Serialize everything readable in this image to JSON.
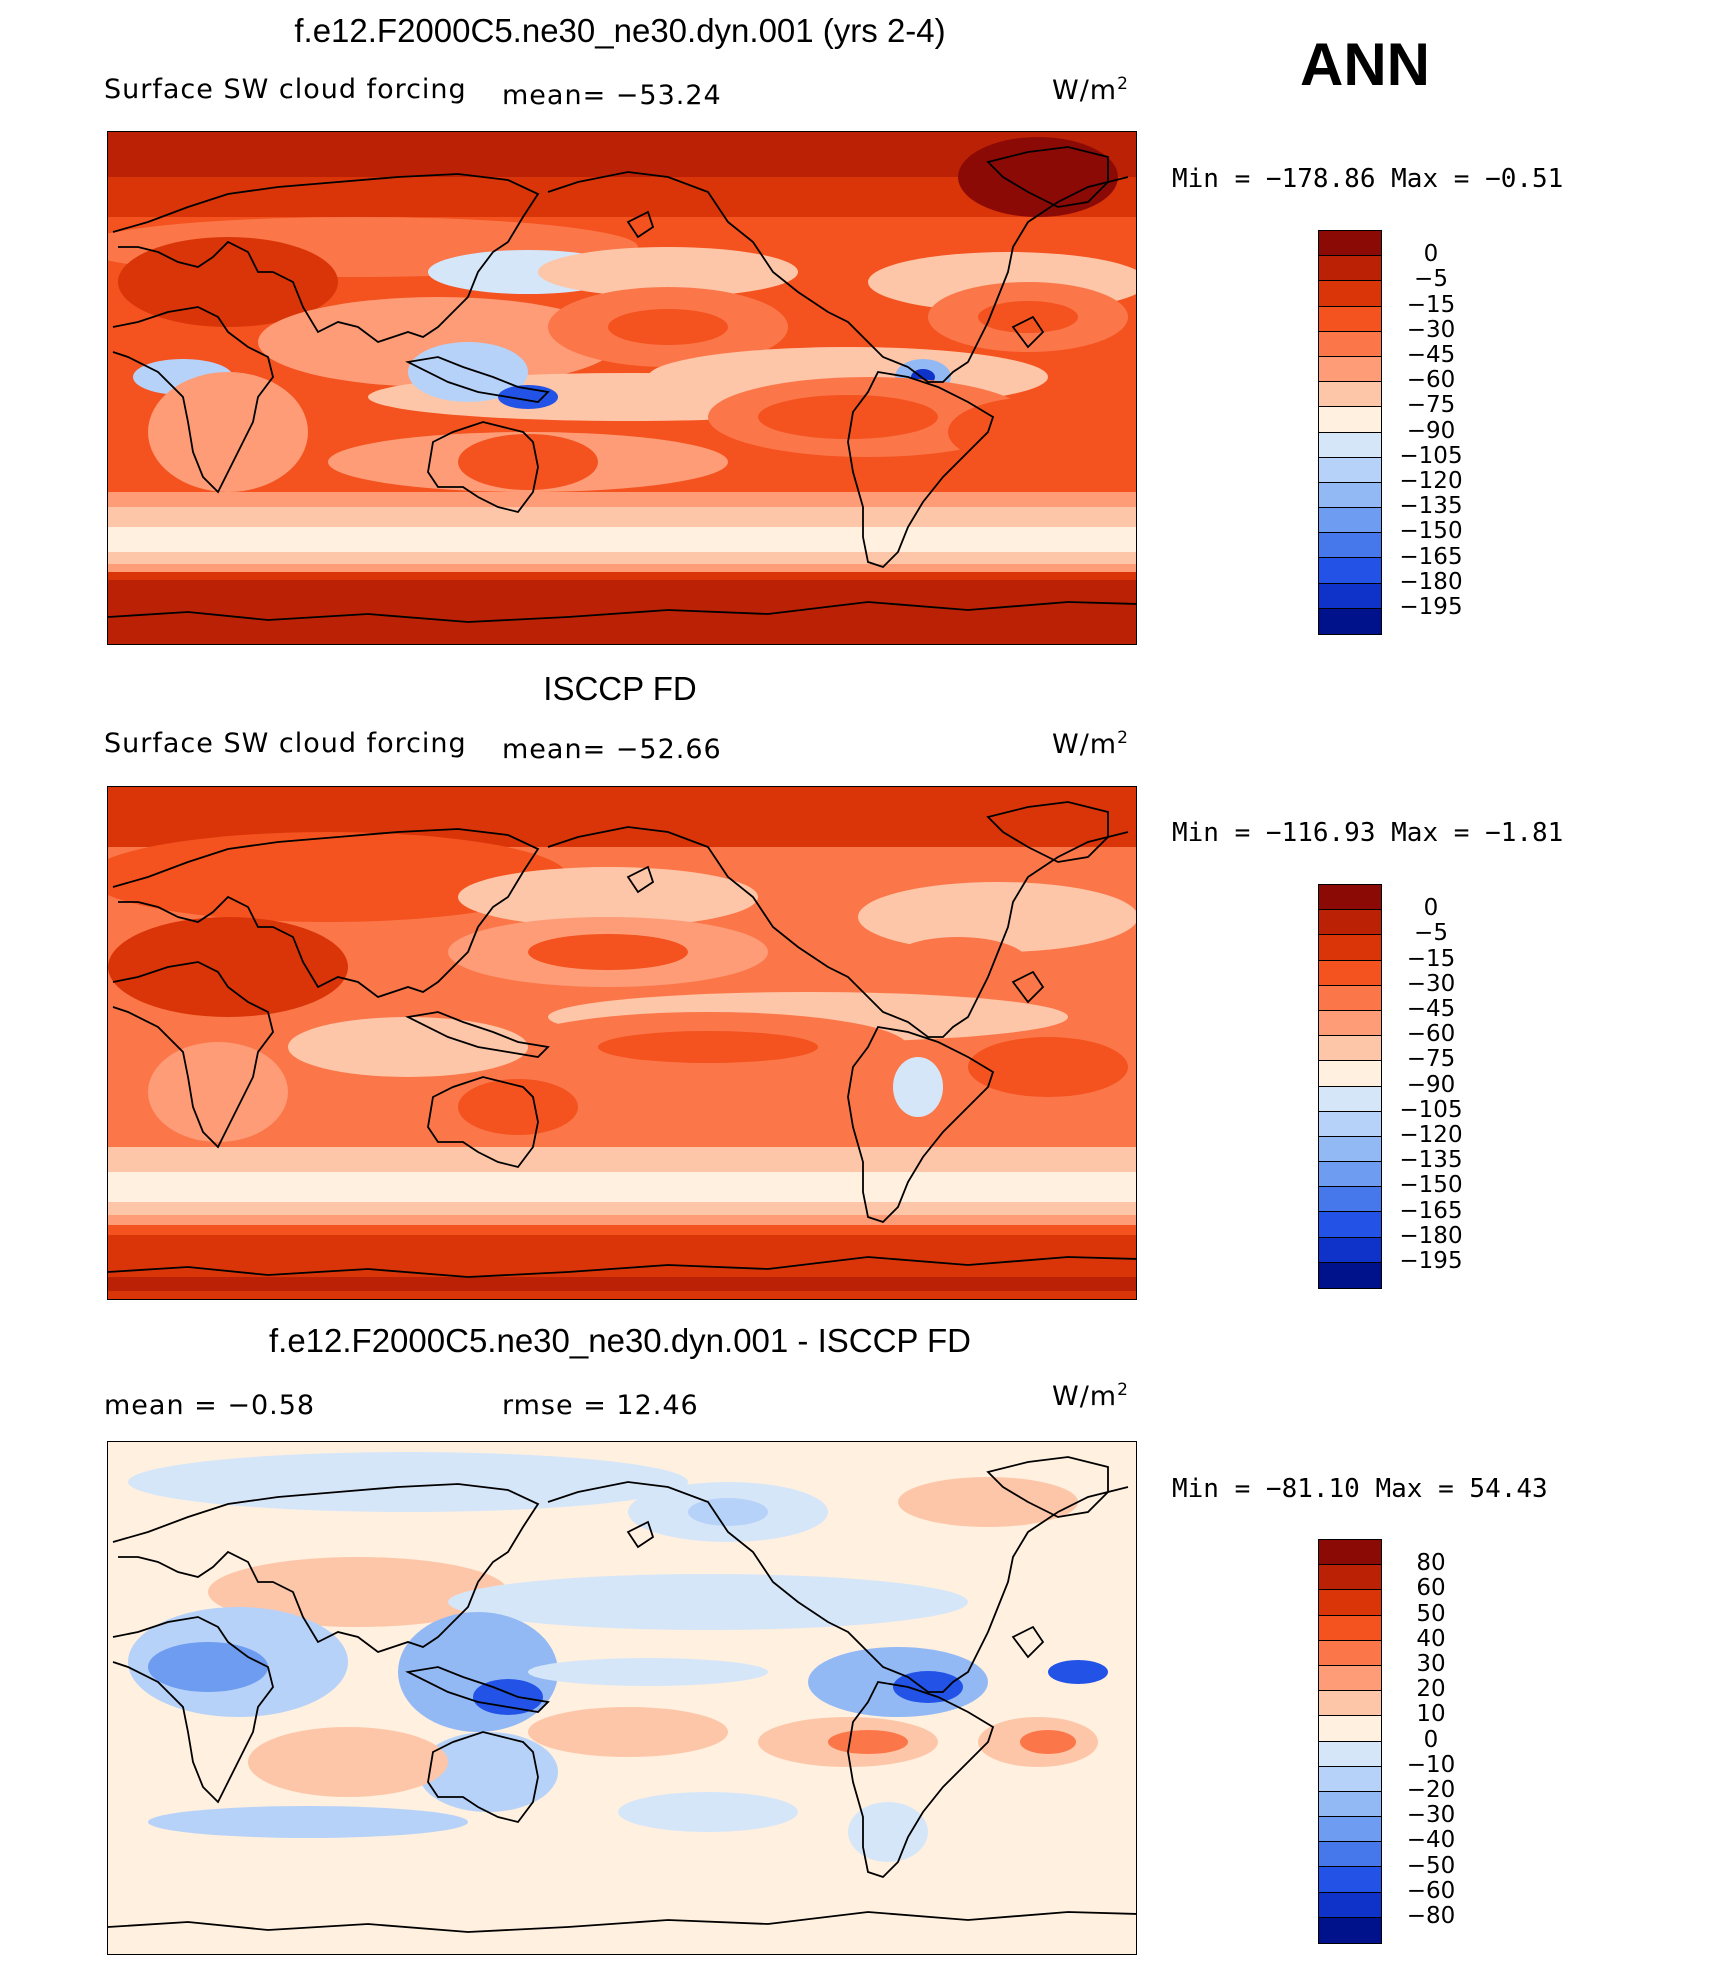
{
  "season": "ANN",
  "panels": [
    {
      "id": "model",
      "title": "f.e12.F2000C5.ne30_ne30.dyn.001 (yrs 2-4)",
      "variable": "Surface SW cloud forcing",
      "stat1": "mean= −53.24",
      "stat2": "",
      "units": "W/m",
      "units_sup": "2",
      "minmax": "Min  =  −178.86  Max  =    −0.51",
      "map_icon": "world-map-outline",
      "colorbar": {
        "labels": [
          "0",
          "−5",
          "−15",
          "−30",
          "−45",
          "−60",
          "−75",
          "−90",
          "−105",
          "−120",
          "−135",
          "−150",
          "−165",
          "−180",
          "−195"
        ],
        "colors": [
          "#8b0a05",
          "#bb2105",
          "#da3508",
          "#f4521e",
          "#fb7749",
          "#fd9c77",
          "#fec6a8",
          "#fff0df",
          "#d6e6f9",
          "#b7d2f8",
          "#93b9f5",
          "#6d9cf0",
          "#4678ec",
          "#2353e6",
          "#0f33c8",
          "#00128b"
        ]
      }
    },
    {
      "id": "obs",
      "title": "ISCCP FD",
      "variable": "Surface SW cloud forcing",
      "stat1": "mean= −52.66",
      "stat2": "",
      "units": "W/m",
      "units_sup": "2",
      "minmax": "Min  =  −116.93  Max  =    −1.81",
      "map_icon": "world-map-outline",
      "colorbar": {
        "labels": [
          "0",
          "−5",
          "−15",
          "−30",
          "−45",
          "−60",
          "−75",
          "−90",
          "−105",
          "−120",
          "−135",
          "−150",
          "−165",
          "−180",
          "−195"
        ],
        "colors": [
          "#8b0a05",
          "#bb2105",
          "#da3508",
          "#f4521e",
          "#fb7749",
          "#fd9c77",
          "#fec6a8",
          "#fff0df",
          "#d6e6f9",
          "#b7d2f8",
          "#93b9f5",
          "#6d9cf0",
          "#4678ec",
          "#2353e6",
          "#0f33c8",
          "#00128b"
        ]
      }
    },
    {
      "id": "diff",
      "title": "f.e12.F2000C5.ne30_ne30.dyn.001 - ISCCP FD",
      "variable": "",
      "stat1": "mean  =    −0.58",
      "stat2": "rmse  =    12.46",
      "units": "W/m",
      "units_sup": "2",
      "minmax": "Min  =  −81.10  Max  =    54.43",
      "map_icon": "world-map-outline",
      "colorbar": {
        "labels": [
          "80",
          "60",
          "50",
          "40",
          "30",
          "20",
          "10",
          "0",
          "−10",
          "−20",
          "−30",
          "−40",
          "−50",
          "−60",
          "−80"
        ],
        "colors": [
          "#8b0a05",
          "#bb2105",
          "#da3508",
          "#f4521e",
          "#fb7749",
          "#fd9c77",
          "#fec6a8",
          "#fff0df",
          "#d6e6f9",
          "#b7d2f8",
          "#93b9f5",
          "#6d9cf0",
          "#4678ec",
          "#2353e6",
          "#0f33c8",
          "#00128b"
        ]
      }
    }
  ]
}
